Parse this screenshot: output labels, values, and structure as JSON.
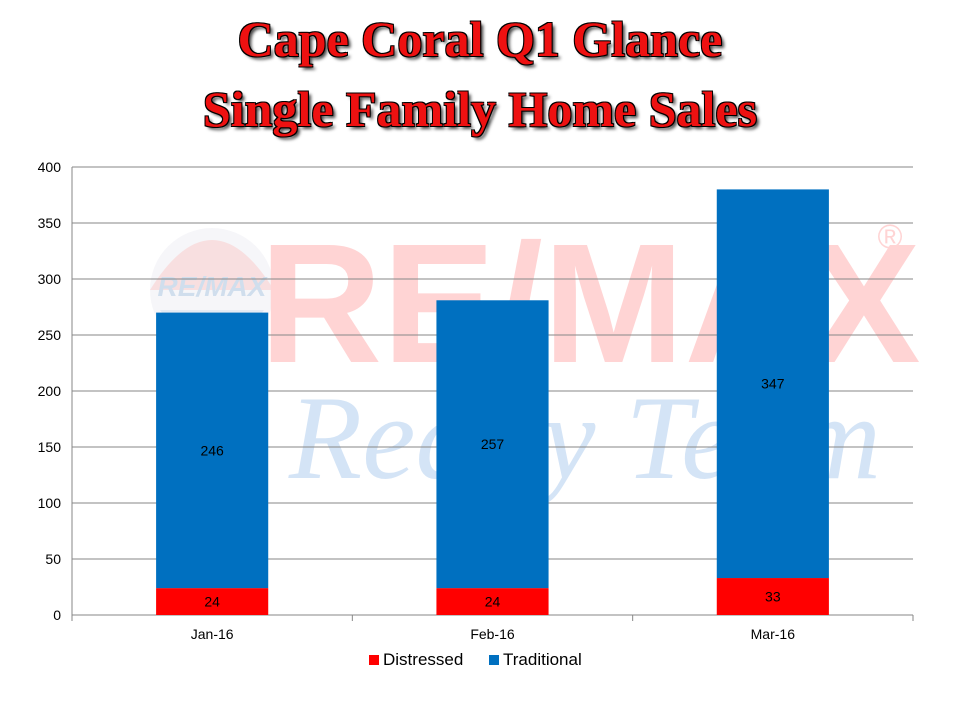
{
  "title_lines": [
    "Cape Coral Q1 Glance",
    "Single Family Home Sales"
  ],
  "watermark": {
    "brand_text": "RE/MAX",
    "tagline_text": "Realty Team",
    "registered": "®",
    "balloon_text": "RE/MAX"
  },
  "chart_data": {
    "type": "bar",
    "stacked": true,
    "categories": [
      "Jan-16",
      "Feb-16",
      "Mar-16"
    ],
    "series": [
      {
        "name": "Distressed",
        "values": [
          24,
          24,
          33
        ],
        "color": "#ff0000"
      },
      {
        "name": "Traditional",
        "values": [
          246,
          257,
          347
        ],
        "color": "#0070c0"
      }
    ],
    "ylim": [
      0,
      400
    ],
    "yticks": [
      0,
      50,
      100,
      150,
      200,
      250,
      300,
      350,
      400
    ],
    "grid": true,
    "legend_position": "bottom",
    "data_labels": true
  }
}
